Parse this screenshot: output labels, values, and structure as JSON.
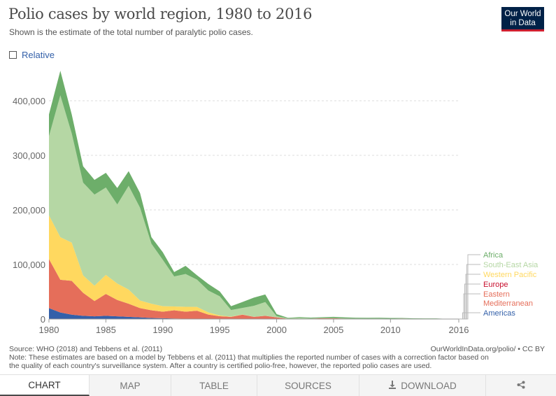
{
  "header": {
    "title": "Polio cases by world region, 1980 to 2016",
    "subtitle": "Shown is the estimate of the total number of paralytic polio cases.",
    "logo_line1": "Our World",
    "logo_line2": "in Data"
  },
  "controls": {
    "relative_label": "Relative",
    "relative_checked": false
  },
  "footer": {
    "source": "Source: WHO (2018) and Tebbens et al. (2011)",
    "url": "OurWorldInData.org/polio/ • CC BY",
    "note_line1": "Note: These estimates are based on a model by Tebbens et al. (2011) that multiplies the reported number of cases with a correction factor based on",
    "note_line2": "the quality of each country's surveillance system. After a country is certified polio-free, however, the reported polio cases are used."
  },
  "tabs": [
    {
      "label": "CHART",
      "icon": "",
      "active": true
    },
    {
      "label": "MAP",
      "icon": "",
      "active": false
    },
    {
      "label": "TABLE",
      "icon": "",
      "active": false
    },
    {
      "label": "SOURCES",
      "icon": "",
      "active": false
    },
    {
      "label": "DOWNLOAD",
      "icon": "download-icon",
      "active": false
    },
    {
      "label": "",
      "icon": "share-icon",
      "active": false
    }
  ],
  "chart_data": {
    "type": "area",
    "stacked": true,
    "title": "Polio cases by world region, 1980 to 2016",
    "xlim": [
      1980,
      2016
    ],
    "ylim": [
      0,
      450000
    ],
    "x_ticks": [
      1980,
      1985,
      1990,
      1995,
      2000,
      2005,
      2010,
      2016
    ],
    "x_tick_labels": [
      "1980",
      "1985",
      "1990",
      "1995",
      "2000",
      "2005",
      "2010",
      "2016"
    ],
    "y_ticks": [
      0,
      100000,
      200000,
      300000,
      400000
    ],
    "y_tick_labels": [
      "0",
      "100,000",
      "200,000",
      "300,000",
      "400,000"
    ],
    "grid": "horizontal dashed",
    "legend_position": "right",
    "x": [
      1980,
      1981,
      1982,
      1983,
      1984,
      1985,
      1986,
      1987,
      1988,
      1989,
      1990,
      1991,
      1992,
      1993,
      1994,
      1995,
      1996,
      1997,
      1998,
      1999,
      2000,
      2001,
      2002,
      2003,
      2004,
      2005,
      2006,
      2007,
      2008,
      2009,
      2010,
      2011,
      2012,
      2013,
      2014,
      2015,
      2016
    ],
    "series": [
      {
        "name": "Americas",
        "color": "#3360a9",
        "values": [
          20000,
          12000,
          8000,
          6000,
          5000,
          6000,
          5000,
          4000,
          3000,
          2000,
          1500,
          1000,
          500,
          300,
          200,
          100,
          50,
          0,
          0,
          0,
          0,
          0,
          0,
          0,
          0,
          0,
          0,
          0,
          0,
          0,
          0,
          0,
          0,
          0,
          0,
          0,
          0
        ]
      },
      {
        "name": "Eastern Mediterranean",
        "color": "#e56e5a",
        "values": [
          90000,
          60000,
          62000,
          42000,
          28000,
          40000,
          30000,
          24000,
          17000,
          14000,
          12000,
          15000,
          13000,
          15000,
          8000,
          5000,
          4000,
          8000,
          4000,
          6000,
          3000,
          500,
          600,
          800,
          1500,
          1500,
          800,
          600,
          500,
          600,
          400,
          1000,
          500,
          500,
          600,
          100,
          50
        ]
      },
      {
        "name": "Western Pacific",
        "color": "#ffd85f",
        "values": [
          80000,
          78000,
          70000,
          32000,
          28000,
          35000,
          30000,
          26000,
          14000,
          12000,
          10000,
          7000,
          9000,
          7000,
          4000,
          1500,
          500,
          300,
          200,
          100,
          50,
          0,
          0,
          0,
          0,
          0,
          0,
          0,
          0,
          0,
          0,
          0,
          0,
          0,
          0,
          0,
          0
        ]
      },
      {
        "name": "Europe",
        "color": "#c8102e",
        "values": [
          0,
          0,
          0,
          0,
          0,
          0,
          0,
          0,
          0,
          0,
          0,
          0,
          0,
          0,
          0,
          0,
          0,
          0,
          0,
          0,
          0,
          0,
          0,
          0,
          0,
          0,
          0,
          0,
          0,
          0,
          0,
          0,
          0,
          0,
          0,
          0,
          0
        ]
      },
      {
        "name": "South-East Asia",
        "color": "#b5d7a4",
        "values": [
          145000,
          260000,
          200000,
          170000,
          167000,
          160000,
          145000,
          190000,
          170000,
          110000,
          85000,
          55000,
          60000,
          50000,
          40000,
          35000,
          12000,
          12000,
          20000,
          25000,
          2000,
          800,
          1500,
          300,
          400,
          500,
          300,
          300,
          300,
          300,
          100,
          0,
          0,
          0,
          0,
          0,
          0
        ]
      },
      {
        "name": "Africa",
        "color": "#6dae6a",
        "values": [
          40000,
          45000,
          35000,
          30000,
          27000,
          27000,
          30000,
          27000,
          27000,
          12000,
          14000,
          8000,
          15000,
          8000,
          12000,
          9000,
          7000,
          11000,
          15000,
          14000,
          4000,
          1000,
          1500,
          1500,
          1500,
          2000,
          2000,
          1500,
          1500,
          1500,
          1500,
          1000,
          800,
          700,
          600,
          200,
          100
        ]
      }
    ]
  }
}
